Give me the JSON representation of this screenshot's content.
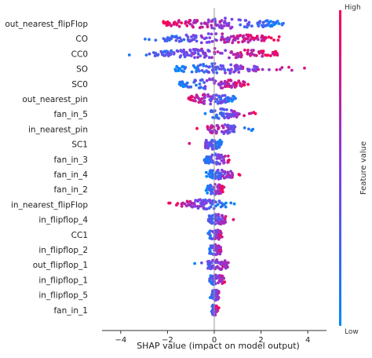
{
  "chart_data": {
    "type": "scatter",
    "subtype": "shap-beeswarm",
    "title": "",
    "xlabel": "SHAP value (impact on model output)",
    "ylabel": "",
    "xlim": [
      -4.8,
      4.8
    ],
    "x_ticks": [
      -4,
      -2,
      0,
      2,
      4
    ],
    "zero_line": true,
    "features": [
      {
        "name": "out_nearest_flipFlop",
        "range": [
          -2.3,
          3.3
        ],
        "core": [
          -2.2,
          3.0
        ],
        "high": "negative"
      },
      {
        "name": "CO",
        "range": [
          -3.6,
          3.0
        ],
        "core": [
          -2.2,
          2.6
        ],
        "high": "positive"
      },
      {
        "name": "CC0",
        "range": [
          -4.2,
          3.1
        ],
        "core": [
          -2.6,
          2.8
        ],
        "high": "positive"
      },
      {
        "name": "SO",
        "range": [
          -2.1,
          4.2
        ],
        "core": [
          -1.7,
          1.9
        ],
        "high": "positive"
      },
      {
        "name": "SC0",
        "range": [
          -1.7,
          1.6
        ],
        "core": [
          -1.5,
          1.3
        ],
        "high": "positive"
      },
      {
        "name": "out_nearest_pin",
        "range": [
          -1.3,
          1.0
        ],
        "core": [
          -1.2,
          0.9
        ],
        "high": "negative"
      },
      {
        "name": "fan_in_5",
        "range": [
          -0.4,
          1.9
        ],
        "core": [
          -0.2,
          1.0
        ],
        "high": "positive"
      },
      {
        "name": "in_nearest_pin",
        "range": [
          -0.9,
          1.9
        ],
        "core": [
          -0.3,
          0.9
        ],
        "high": "negative"
      },
      {
        "name": "SC1",
        "range": [
          -1.3,
          0.5
        ],
        "core": [
          -0.4,
          0.3
        ],
        "high": "negative"
      },
      {
        "name": "fan_in_3",
        "range": [
          -0.5,
          0.9
        ],
        "core": [
          -0.4,
          0.6
        ],
        "high": "positive"
      },
      {
        "name": "fan_in_4",
        "range": [
          -0.4,
          1.2
        ],
        "core": [
          -0.3,
          0.8
        ],
        "high": "positive"
      },
      {
        "name": "fan_in_2",
        "range": [
          -0.4,
          0.5
        ],
        "core": [
          -0.3,
          0.4
        ],
        "high": "positive"
      },
      {
        "name": "in_nearest_flipFlop",
        "range": [
          -2.1,
          0.9
        ],
        "core": [
          -1.4,
          0.5
        ],
        "high": "negative"
      },
      {
        "name": "in_flipflop_4",
        "range": [
          -0.5,
          0.9
        ],
        "core": [
          -0.3,
          0.5
        ],
        "high": "positive"
      },
      {
        "name": "CC1",
        "range": [
          -0.3,
          0.4
        ],
        "core": [
          -0.2,
          0.3
        ],
        "high": "positive"
      },
      {
        "name": "in_flipflop_2",
        "range": [
          -0.3,
          0.4
        ],
        "core": [
          -0.2,
          0.3
        ],
        "high": "positive"
      },
      {
        "name": "out_flipflop_1",
        "range": [
          -1.0,
          1.1
        ],
        "core": [
          -0.3,
          0.6
        ],
        "high": "positive"
      },
      {
        "name": "in_flipflop_1",
        "range": [
          -0.3,
          0.6
        ],
        "core": [
          -0.2,
          0.4
        ],
        "high": "positive"
      },
      {
        "name": "in_flipflop_5",
        "range": [
          -0.2,
          0.3
        ],
        "core": [
          -0.1,
          0.2
        ],
        "high": "positive"
      },
      {
        "name": "fan_in_1",
        "range": [
          -0.2,
          0.2
        ],
        "core": [
          -0.1,
          0.1
        ],
        "high": "positive"
      }
    ],
    "colorbar": {
      "label": "Feature value",
      "high_label": "High",
      "low_label": "Low",
      "colors": {
        "low": "#008afb",
        "mid": "#7f3fe6",
        "high": "#ff0052"
      }
    },
    "grid": false,
    "legend": "colorbar-right"
  }
}
